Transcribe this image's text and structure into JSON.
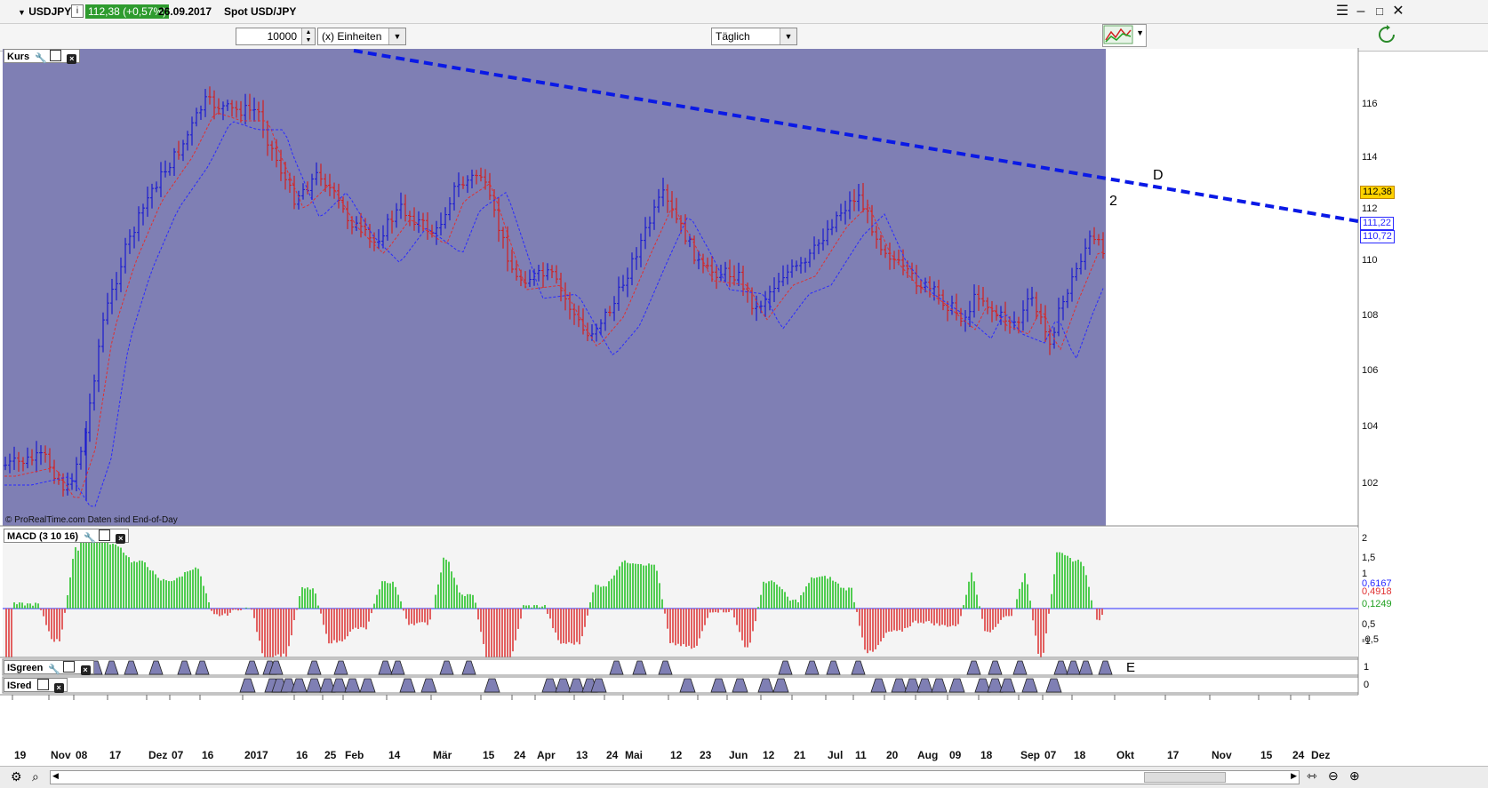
{
  "window": {
    "symbol": "USDJPY",
    "info_icon": "i",
    "price_change": "112,38 (+0,57%)",
    "date": "26.09.2017",
    "instrument": "Spot USD/JPY"
  },
  "toolbar": {
    "quantity": "10000",
    "unit_select": "(x) Einheiten",
    "period_select": "Täglich"
  },
  "price_panel": {
    "label": "Kurs",
    "copyright": "© ProRealTime.com  Daten sind End-of-Day",
    "y_ticks": [
      "116",
      "114",
      "112",
      "110",
      "108",
      "106",
      "104",
      "102"
    ],
    "tags": [
      {
        "value": "112,38",
        "bg": "#ffd200",
        "border": "#c08800",
        "color": "#000"
      },
      {
        "value": "111,22",
        "bg": "#ffffff",
        "border": "#2a2aff",
        "color": "#2a2aff"
      },
      {
        "value": "110,72",
        "bg": "#ffffff",
        "border": "#2a2aff",
        "color": "#2a2aff"
      }
    ],
    "annotations": {
      "wave": "2",
      "point": "D"
    }
  },
  "macd_panel": {
    "label": "MACD (3 10 16)",
    "y_ticks": [
      "2",
      "1,5",
      "1",
      "0,5",
      "-0,5",
      "-1"
    ],
    "tags": [
      {
        "value": "0,6167",
        "color": "#2a2aff"
      },
      {
        "value": "0,4918",
        "color": "#e03030"
      },
      {
        "value": "0,1249",
        "color": "#20a020"
      }
    ]
  },
  "isgreen_panel": {
    "label": "ISgreen",
    "value": "1",
    "marker": "E"
  },
  "isred_panel": {
    "label": "ISred",
    "value": "0"
  },
  "x_axis": [
    "19",
    "Nov",
    "08",
    "17",
    "Dez",
    "07",
    "16",
    "2017",
    "16",
    "25",
    "Feb",
    "14",
    "Mär",
    "15",
    "24",
    "Apr",
    "13",
    "24",
    "Mai",
    "12",
    "23",
    "Jun",
    "12",
    "21",
    "Jul",
    "11",
    "20",
    "Aug",
    "09",
    "18",
    "Sep",
    "07",
    "18",
    "Okt",
    "17",
    "Nov",
    "15",
    "24",
    "Dez"
  ],
  "colors": {
    "chart_bg": "#7f7fb4",
    "up_bar": "#1a1ad0",
    "down_bar": "#d02020",
    "trendline": "#0a19e6",
    "macd_green": "#3ec83e",
    "macd_red": "#e05050"
  },
  "icons": [
    "dropdown-arrow-icon",
    "info-icon",
    "menu-icon",
    "minimize-icon",
    "maximize-icon",
    "close-icon",
    "wrench-icon",
    "window-icon",
    "panel-close-icon",
    "chart-type-icon",
    "zoom-in-icon",
    "zoom-out-icon",
    "magnifier-icon",
    "refresh-icon"
  ]
}
